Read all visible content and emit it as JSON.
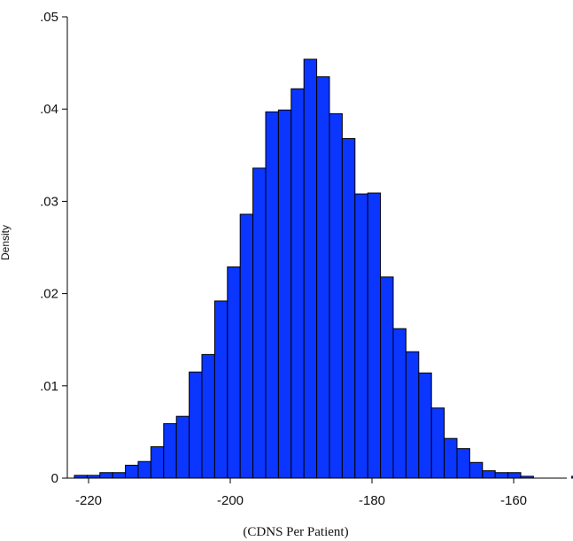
{
  "chart_data": {
    "type": "bar",
    "subtype": "histogram",
    "title": "",
    "xlabel": "(CDNS Per Patient)",
    "ylabel": "Density",
    "xlim": [
      -223,
      -152.5
    ],
    "ylim": [
      0,
      0.05
    ],
    "x_ticks": [
      -220,
      -200,
      -180,
      -160
    ],
    "x_tick_labels": [
      "-220",
      "-200",
      "-180",
      "-160"
    ],
    "y_ticks": [
      0,
      0.01,
      0.02,
      0.03,
      0.04,
      0.05
    ],
    "y_tick_labels": [
      "0",
      ".01",
      ".02",
      ".03",
      ".04",
      ".05"
    ],
    "bin_start": -222,
    "bin_width": 1.8,
    "values": [
      0.0003,
      0.0003,
      0.0006,
      0.0006,
      0.0014,
      0.0018,
      0.0034,
      0.0059,
      0.0067,
      0.0115,
      0.0134,
      0.0192,
      0.0229,
      0.0286,
      0.0336,
      0.0397,
      0.0399,
      0.0422,
      0.0454,
      0.0435,
      0.0395,
      0.0368,
      0.0308,
      0.0309,
      0.0218,
      0.0162,
      0.0137,
      0.0114,
      0.0076,
      0.0043,
      0.0032,
      0.0017,
      0.0008,
      0.0006,
      0.0006,
      0.0002,
      0,
      0,
      0,
      0.0002
    ],
    "bar_color": "#0a36ff",
    "bar_edge_color": "#000000",
    "grid": false,
    "legend": "none"
  }
}
